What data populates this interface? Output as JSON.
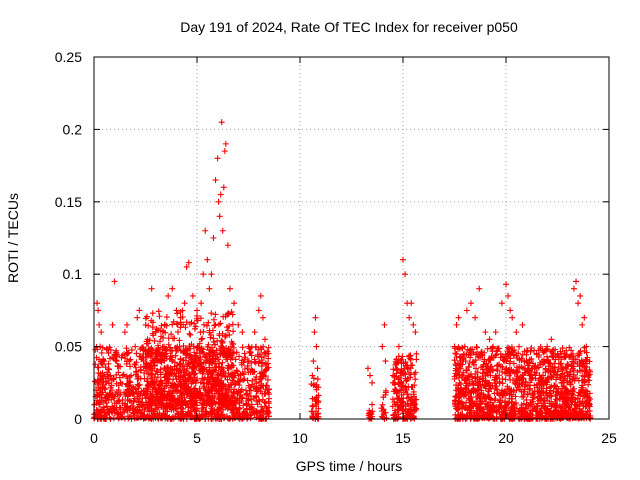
{
  "chart_data": {
    "type": "scatter",
    "title": "Day 191 of 2024, Rate Of TEC Index for receiver p050",
    "xlabel": "GPS time / hours",
    "ylabel": "ROTI / TECUs",
    "xlim": [
      0,
      25
    ],
    "ylim": [
      0,
      0.25
    ],
    "x_ticks": [
      0,
      5,
      10,
      15,
      20,
      25
    ],
    "x_tick_labels": [
      "0",
      "5",
      "10",
      "15",
      "20",
      "25"
    ],
    "y_ticks": [
      0,
      0.05,
      0.1,
      0.15,
      0.2,
      0.25
    ],
    "y_tick_labels": [
      "0",
      "0.05",
      "0.1",
      "0.15",
      "0.2",
      "0.25"
    ],
    "grid": true,
    "marker": "+",
    "series": [
      {
        "name": "ROTI",
        "color": "#ff0000",
        "points": [
          [
            0.1,
            0.02
          ],
          [
            0.15,
            0.08
          ],
          [
            0.2,
            0.075
          ],
          [
            0.25,
            0.065
          ],
          [
            0.3,
            0.05
          ],
          [
            0.35,
            0.06
          ],
          [
            0.4,
            0.03
          ],
          [
            0.5,
            0.04
          ],
          [
            0.6,
            0.025
          ],
          [
            0.7,
            0.015
          ],
          [
            0.8,
            0.03
          ],
          [
            0.9,
            0.065
          ],
          [
            1.0,
            0.095
          ],
          [
            1.1,
            0.04
          ],
          [
            1.2,
            0.02
          ],
          [
            1.4,
            0.03
          ],
          [
            1.5,
            0.06
          ],
          [
            1.6,
            0.065
          ],
          [
            1.8,
            0.03
          ],
          [
            2.0,
            0.05
          ],
          [
            2.1,
            0.07
          ],
          [
            2.2,
            0.075
          ],
          [
            2.4,
            0.04
          ],
          [
            2.6,
            0.055
          ],
          [
            2.8,
            0.09
          ],
          [
            3.0,
            0.06
          ],
          [
            3.2,
            0.04
          ],
          [
            3.4,
            0.05
          ],
          [
            3.6,
            0.085
          ],
          [
            3.8,
            0.09
          ],
          [
            4.0,
            0.075
          ],
          [
            4.2,
            0.07
          ],
          [
            4.4,
            0.08
          ],
          [
            4.5,
            0.105
          ],
          [
            4.6,
            0.108
          ],
          [
            4.8,
            0.085
          ],
          [
            5.0,
            0.075
          ],
          [
            5.2,
            0.08
          ],
          [
            5.3,
            0.1
          ],
          [
            5.4,
            0.13
          ],
          [
            5.5,
            0.11
          ],
          [
            5.6,
            0.09
          ],
          [
            5.7,
            0.1
          ],
          [
            5.8,
            0.125
          ],
          [
            5.9,
            0.165
          ],
          [
            6.0,
            0.18
          ],
          [
            6.05,
            0.15
          ],
          [
            6.1,
            0.14
          ],
          [
            6.15,
            0.155
          ],
          [
            6.2,
            0.205
          ],
          [
            6.25,
            0.13
          ],
          [
            6.3,
            0.16
          ],
          [
            6.35,
            0.185
          ],
          [
            6.4,
            0.19
          ],
          [
            6.5,
            0.12
          ],
          [
            6.6,
            0.09
          ],
          [
            6.8,
            0.08
          ],
          [
            7.0,
            0.065
          ],
          [
            7.2,
            0.06
          ],
          [
            7.5,
            0.05
          ],
          [
            7.8,
            0.06
          ],
          [
            8.0,
            0.075
          ],
          [
            8.1,
            0.085
          ],
          [
            8.2,
            0.07
          ],
          [
            8.3,
            0.055
          ],
          [
            8.4,
            0.045
          ],
          [
            10.6,
            0.03
          ],
          [
            10.65,
            0.04
          ],
          [
            10.7,
            0.06
          ],
          [
            10.75,
            0.07
          ],
          [
            10.8,
            0.05
          ],
          [
            10.85,
            0.035
          ],
          [
            13.3,
            0.035
          ],
          [
            13.4,
            0.03
          ],
          [
            13.5,
            0.025
          ],
          [
            14.0,
            0.05
          ],
          [
            14.1,
            0.065
          ],
          [
            14.15,
            0.04
          ],
          [
            14.6,
            0.025
          ],
          [
            14.8,
            0.05
          ],
          [
            15.0,
            0.11
          ],
          [
            15.1,
            0.1
          ],
          [
            15.2,
            0.08
          ],
          [
            15.3,
            0.07
          ],
          [
            15.4,
            0.08
          ],
          [
            15.5,
            0.065
          ],
          [
            15.6,
            0.06
          ],
          [
            15.65,
            0.045
          ],
          [
            17.5,
            0.05
          ],
          [
            17.6,
            0.065
          ],
          [
            17.7,
            0.07
          ],
          [
            17.8,
            0.04
          ],
          [
            18.0,
            0.05
          ],
          [
            18.1,
            0.075
          ],
          [
            18.3,
            0.08
          ],
          [
            18.5,
            0.07
          ],
          [
            18.7,
            0.09
          ],
          [
            19.0,
            0.06
          ],
          [
            19.2,
            0.055
          ],
          [
            19.5,
            0.06
          ],
          [
            19.8,
            0.08
          ],
          [
            20.0,
            0.093
          ],
          [
            20.1,
            0.085
          ],
          [
            20.2,
            0.075
          ],
          [
            20.3,
            0.07
          ],
          [
            20.5,
            0.06
          ],
          [
            20.8,
            0.065
          ],
          [
            21.0,
            0.04
          ],
          [
            21.2,
            0.03
          ],
          [
            21.5,
            0.035
          ],
          [
            21.8,
            0.03
          ],
          [
            22.0,
            0.05
          ],
          [
            22.2,
            0.055
          ],
          [
            22.5,
            0.045
          ],
          [
            22.8,
            0.035
          ],
          [
            23.0,
            0.03
          ],
          [
            23.3,
            0.09
          ],
          [
            23.4,
            0.095
          ],
          [
            23.5,
            0.08
          ],
          [
            23.6,
            0.085
          ],
          [
            23.7,
            0.065
          ],
          [
            23.8,
            0.07
          ],
          [
            23.9,
            0.05
          ],
          [
            24.0,
            0.03
          ]
        ]
      }
    ],
    "bands": [
      {
        "x_start": 0.0,
        "x_end": 8.5,
        "y_min": 0.0,
        "y_max": 0.05,
        "count": 1400,
        "seed": 11
      },
      {
        "x_start": 2.5,
        "x_end": 6.8,
        "y_min": 0.01,
        "y_max": 0.075,
        "count": 500,
        "seed": 12
      },
      {
        "x_start": 10.55,
        "x_end": 10.9,
        "y_min": 0.0,
        "y_max": 0.03,
        "count": 40,
        "seed": 13
      },
      {
        "x_start": 13.3,
        "x_end": 13.55,
        "y_min": 0.0,
        "y_max": 0.015,
        "count": 15,
        "seed": 14
      },
      {
        "x_start": 13.95,
        "x_end": 14.2,
        "y_min": 0.0,
        "y_max": 0.02,
        "count": 15,
        "seed": 15
      },
      {
        "x_start": 14.5,
        "x_end": 15.7,
        "y_min": 0.0,
        "y_max": 0.045,
        "count": 200,
        "seed": 16
      },
      {
        "x_start": 17.5,
        "x_end": 24.1,
        "y_min": 0.0,
        "y_max": 0.05,
        "count": 1400,
        "seed": 17
      }
    ]
  }
}
